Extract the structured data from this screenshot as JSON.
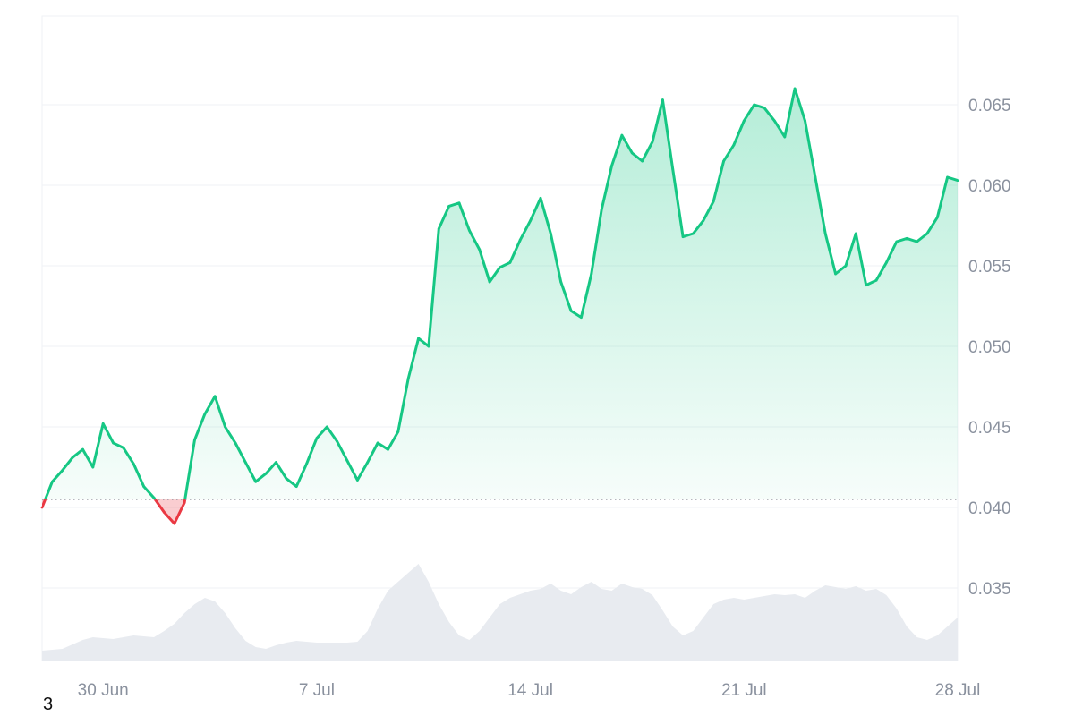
{
  "chart_data": {
    "type": "area",
    "title": "",
    "xlabel": "",
    "ylabel": "",
    "baseline_value": 0.0405,
    "ylim": [
      0.0305,
      0.0705
    ],
    "yticks": [
      0.035,
      0.04,
      0.045,
      0.05,
      0.055,
      0.06,
      0.065
    ],
    "ytick_labels": [
      "0.035",
      "0.040",
      "0.045",
      "0.050",
      "0.055",
      "0.060",
      "0.065"
    ],
    "xlim": [
      "2024-06-28",
      "2024-07-28"
    ],
    "xticks": [
      "2024-06-30",
      "2024-07-07",
      "2024-07-14",
      "2024-07-21",
      "2024-07-28"
    ],
    "xtick_labels": [
      "30 Jun",
      "7 Jul",
      "14 Jul",
      "21 Jul",
      "28 Jul"
    ],
    "grid": true,
    "colors": {
      "above": "#16c784",
      "below": "#ea3943",
      "volume": "#e8ebf0",
      "grid": "#eff2f5",
      "baseline": "#8a8f98"
    },
    "series": [
      {
        "x": [
          "2024-06-28T00:00",
          "2024-06-28T08:00",
          "2024-06-28T16:00",
          "2024-06-29T00:00",
          "2024-06-29T08:00",
          "2024-06-29T16:00",
          "2024-06-30T00:00",
          "2024-06-30T08:00",
          "2024-06-30T16:00",
          "2024-07-01T00:00",
          "2024-07-01T08:00",
          "2024-07-01T16:00",
          "2024-07-02T00:00",
          "2024-07-02T08:00",
          "2024-07-02T16:00",
          "2024-07-03T00:00",
          "2024-07-03T08:00",
          "2024-07-03T16:00",
          "2024-07-04T00:00",
          "2024-07-04T08:00",
          "2024-07-04T16:00",
          "2024-07-05T00:00",
          "2024-07-05T08:00",
          "2024-07-05T16:00",
          "2024-07-06T00:00",
          "2024-07-06T08:00",
          "2024-07-06T16:00",
          "2024-07-07T00:00",
          "2024-07-07T08:00",
          "2024-07-07T16:00",
          "2024-07-08T00:00",
          "2024-07-08T08:00",
          "2024-07-08T16:00",
          "2024-07-09T00:00",
          "2024-07-09T08:00",
          "2024-07-09T16:00",
          "2024-07-10T00:00",
          "2024-07-10T08:00",
          "2024-07-10T16:00",
          "2024-07-11T00:00",
          "2024-07-11T08:00",
          "2024-07-11T16:00",
          "2024-07-12T00:00",
          "2024-07-12T08:00",
          "2024-07-12T16:00",
          "2024-07-13T00:00",
          "2024-07-13T08:00",
          "2024-07-13T16:00",
          "2024-07-14T00:00",
          "2024-07-14T08:00",
          "2024-07-14T16:00",
          "2024-07-15T00:00",
          "2024-07-15T08:00",
          "2024-07-15T16:00",
          "2024-07-16T00:00",
          "2024-07-16T08:00",
          "2024-07-16T16:00",
          "2024-07-17T00:00",
          "2024-07-17T08:00",
          "2024-07-17T16:00",
          "2024-07-18T00:00",
          "2024-07-18T08:00",
          "2024-07-18T16:00",
          "2024-07-19T00:00",
          "2024-07-19T08:00",
          "2024-07-19T16:00",
          "2024-07-20T00:00",
          "2024-07-20T08:00",
          "2024-07-20T16:00",
          "2024-07-21T00:00",
          "2024-07-21T08:00",
          "2024-07-21T16:00",
          "2024-07-22T00:00",
          "2024-07-22T08:00",
          "2024-07-22T16:00",
          "2024-07-23T00:00",
          "2024-07-23T08:00",
          "2024-07-23T16:00",
          "2024-07-24T00:00",
          "2024-07-24T08:00",
          "2024-07-24T16:00",
          "2024-07-25T00:00",
          "2024-07-25T08:00",
          "2024-07-25T16:00",
          "2024-07-26T00:00",
          "2024-07-26T08:00",
          "2024-07-26T16:00",
          "2024-07-27T00:00",
          "2024-07-27T08:00",
          "2024-07-27T16:00",
          "2024-07-28T00:00"
        ],
        "values": [
          0.04,
          0.0416,
          0.0423,
          0.0431,
          0.0436,
          0.0425,
          0.0452,
          0.044,
          0.0437,
          0.0427,
          0.0413,
          0.0406,
          0.0397,
          0.039,
          0.0403,
          0.0442,
          0.0458,
          0.0469,
          0.045,
          0.044,
          0.0428,
          0.0416,
          0.0421,
          0.0428,
          0.0418,
          0.0413,
          0.0427,
          0.0443,
          0.045,
          0.0441,
          0.0429,
          0.0417,
          0.0428,
          0.044,
          0.0436,
          0.0447,
          0.048,
          0.0505,
          0.05,
          0.0573,
          0.0587,
          0.0589,
          0.0572,
          0.056,
          0.054,
          0.0549,
          0.0552,
          0.0566,
          0.0578,
          0.0592,
          0.057,
          0.054,
          0.0522,
          0.0518,
          0.0545,
          0.0585,
          0.0612,
          0.0631,
          0.062,
          0.0615,
          0.0627,
          0.0653,
          0.061,
          0.0568,
          0.057,
          0.0578,
          0.059,
          0.0615,
          0.0625,
          0.064,
          0.065,
          0.0648,
          0.064,
          0.063,
          0.066,
          0.064,
          0.0605,
          0.057,
          0.0545,
          0.055,
          0.057,
          0.0538,
          0.0541,
          0.0552,
          0.0565,
          0.0567,
          0.0565,
          0.057,
          0.058,
          0.0605,
          0.0603
        ]
      }
    ],
    "volume_series": {
      "name": "",
      "values": [
        0.03,
        0.04,
        0.05,
        0.1,
        0.15,
        0.18,
        0.17,
        0.16,
        0.18,
        0.2,
        0.19,
        0.18,
        0.25,
        0.33,
        0.45,
        0.55,
        0.62,
        0.58,
        0.45,
        0.28,
        0.14,
        0.07,
        0.05,
        0.09,
        0.12,
        0.14,
        0.13,
        0.12,
        0.12,
        0.12,
        0.12,
        0.13,
        0.25,
        0.5,
        0.7,
        0.8,
        0.9,
        1.0,
        0.8,
        0.55,
        0.35,
        0.2,
        0.15,
        0.25,
        0.4,
        0.55,
        0.62,
        0.66,
        0.7,
        0.72,
        0.78,
        0.7,
        0.66,
        0.74,
        0.8,
        0.72,
        0.7,
        0.78,
        0.74,
        0.72,
        0.65,
        0.48,
        0.3,
        0.2,
        0.25,
        0.4,
        0.55,
        0.6,
        0.62,
        0.6,
        0.62,
        0.64,
        0.66,
        0.65,
        0.66,
        0.62,
        0.7,
        0.76,
        0.74,
        0.72,
        0.75,
        0.7,
        0.72,
        0.65,
        0.5,
        0.3,
        0.18,
        0.15,
        0.2,
        0.3,
        0.4
      ]
    }
  },
  "footer": {
    "label": "3"
  }
}
